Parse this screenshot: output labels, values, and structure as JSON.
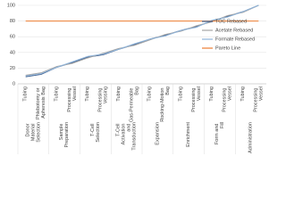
{
  "chart_data": {
    "type": "line",
    "categories": [
      "Tubing",
      "Phlebotomy or Apheresis Bag",
      "Tubing",
      "Processing Vessel",
      "Tubing",
      "Processing Vessing",
      "Tubing",
      "Gas-Permeable Bag",
      "Tubing",
      "Rocking-Motion Bag",
      "Tubing",
      "Processing Vessel",
      "Tubing",
      "Processing Vessel",
      "Tubing",
      "Processing Vessel"
    ],
    "groups": [
      "Donor Material Selection",
      "Sample Preparation",
      "T-Cell Selection",
      "T-Cell Activation and Transduction",
      "Expansion",
      "Enrichment",
      "Form and Fill",
      "Administration"
    ],
    "series": [
      {
        "name": "TOC Rebased",
        "color": "#41618f",
        "values": [
          9,
          12,
          21,
          27,
          34,
          37,
          44,
          50,
          57,
          62,
          68,
          73,
          80,
          86,
          92,
          100
        ]
      },
      {
        "name": "Acetate Rebased",
        "color": "#a5a5a5",
        "values": [
          11,
          14,
          22,
          26,
          33,
          39,
          45,
          49,
          56,
          63,
          67,
          74,
          79,
          87,
          91,
          100
        ]
      },
      {
        "name": "Formate Rebased",
        "color": "#8fb4da",
        "values": [
          10,
          13,
          21,
          28,
          35,
          38,
          44,
          51,
          57,
          61,
          68,
          72,
          81,
          85,
          92,
          100
        ]
      },
      {
        "name": "Pareto Line",
        "color": "#ed7d31",
        "values": [
          80,
          80,
          80,
          80,
          80,
          80,
          80,
          80,
          80,
          80,
          80,
          80,
          80,
          80,
          80,
          80
        ]
      }
    ],
    "ylim": [
      0,
      100
    ],
    "yticks": [
      0,
      20,
      40,
      60,
      80,
      100
    ],
    "grid": true,
    "legend": "top-right"
  }
}
